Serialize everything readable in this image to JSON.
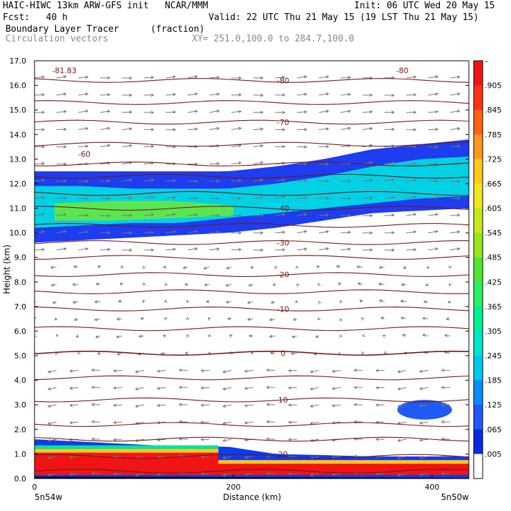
{
  "header": {
    "line1_left": "HAIC-HIWC 13km ARW-GFS init   NCAR/MMM",
    "line1_right": "Init: 06 UTC Wed 20 May 15",
    "line2_left": "Fcst:   40 h",
    "line2_right": "Valid: 22 UTC Thu 21 May 15 (19 LST Thu 21 May 15)",
    "line3_field": "Boundary Layer Tracer",
    "line3_units": "(fraction)",
    "line4_field": "Circulation vectors",
    "line4_xy": "XY= 251.0,100.0 to 284.7,100.0"
  },
  "chart_data": {
    "type": "heatmap",
    "xlabel": "Distance (km)",
    "ylabel": "Height (km)",
    "xlim": [
      0,
      437
    ],
    "ylim": [
      0,
      17
    ],
    "x_ticks": [
      "0",
      "200",
      "400"
    ],
    "x_end_labels": [
      "5n54w",
      "5n50w"
    ],
    "y_ticks": [
      "0.0",
      "1.0",
      "2.0",
      "3.0",
      "4.0",
      "5.0",
      "6.0",
      "7.0",
      "8.0",
      "9.0",
      "10.0",
      "11.0",
      "12.0",
      "13.0",
      "14.0",
      "15.0",
      "16.0",
      "17.0"
    ],
    "colorbar": {
      "labels": [
        ".005",
        ".065",
        ".125",
        ".185",
        ".245",
        ".305",
        ".365",
        ".425",
        ".485",
        ".545",
        ".605",
        ".665",
        ".725",
        ".785",
        ".845",
        ".905",
        "–"
      ],
      "colors": [
        "#ffffff",
        "#0a28e6",
        "#1e5af5",
        "#0a8cff",
        "#00c8f0",
        "#00e6c8",
        "#00f096",
        "#28f064",
        "#50e632",
        "#96e61e",
        "#c8e61e",
        "#f0e61e",
        "#ffc81e",
        "#ff961e",
        "#ff6414",
        "#ff3214",
        "#f01414"
      ]
    },
    "isotherm_labels": [
      {
        "text": "-81.83",
        "x": 30,
        "y": 16.6
      },
      {
        "text": "-80",
        "x": 370,
        "y": 16.6
      },
      {
        "text": "-80",
        "x": 250,
        "y": 16.2
      },
      {
        "text": "-70",
        "x": 250,
        "y": 14.5
      },
      {
        "text": "-60",
        "x": 50,
        "y": 13.2
      },
      {
        "text": "-40",
        "x": 250,
        "y": 11.0
      },
      {
        "text": "-30",
        "x": 250,
        "y": 9.6
      },
      {
        "text": "-20",
        "x": 250,
        "y": 8.3
      },
      {
        "text": "-10",
        "x": 250,
        "y": 6.9
      },
      {
        "text": "0",
        "x": 250,
        "y": 5.1
      },
      {
        "text": "10",
        "x": 250,
        "y": 3.2
      },
      {
        "text": "20",
        "x": 250,
        "y": 1.0
      }
    ],
    "isotherm_heights": [
      0.3,
      0.9,
      1.6,
      2.2,
      3.2,
      4.1,
      5.1,
      6.1,
      6.9,
      7.6,
      8.3,
      9.0,
      9.6,
      10.3,
      11.0,
      11.6,
      12.3,
      12.8,
      13.6,
      14.5,
      15.3,
      16.2
    ],
    "tracer_regions": [
      {
        "name": "upper-layer",
        "level": 0.065,
        "x_range": [
          0,
          437
        ],
        "bottom": [
          9.6,
          9.7,
          9.8,
          9.9,
          10.0,
          10.2,
          10.5,
          10.8,
          10.9,
          11.0
        ],
        "top": [
          12.5,
          12.5,
          12.5,
          12.5,
          12.5,
          12.7,
          13.0,
          13.4,
          13.6,
          13.8
        ]
      },
      {
        "name": "upper-core",
        "level": 0.305,
        "x_range": [
          0,
          437
        ],
        "bottom": [
          10.2,
          10.3,
          10.4,
          10.4,
          10.6,
          10.8,
          11.0,
          11.2,
          11.4,
          11.5
        ],
        "top": [
          11.9,
          11.9,
          11.8,
          11.8,
          11.8,
          12.0,
          12.3,
          12.7,
          13.0,
          13.1
        ]
      },
      {
        "name": "upper-max",
        "level": 0.365,
        "x_range": [
          20,
          200
        ],
        "bottom": [
          10.5,
          10.5,
          10.6,
          10.7
        ],
        "top": [
          11.2,
          11.3,
          11.3,
          11.1
        ]
      },
      {
        "name": "boundary-layer-high",
        "level": 0.905,
        "x_range": [
          0,
          185
        ],
        "bottom": [
          0.15
        ],
        "top": [
          1.2
        ]
      },
      {
        "name": "boundary-layer-low",
        "level": 0.905,
        "x_range": [
          185,
          437
        ],
        "bottom": [
          0.15
        ],
        "top": [
          0.75
        ]
      },
      {
        "name": "bl-edge",
        "level": 0.065,
        "x_range": [
          0,
          437
        ],
        "bottom": [
          0.0
        ],
        "top": [
          1.6,
          1.5,
          1.4,
          1.3,
          1.3,
          1.0,
          0.95,
          0.9,
          0.9,
          0.9
        ]
      },
      {
        "name": "blob-east",
        "level": 0.065,
        "x_range": [
          365,
          420
        ],
        "bottom": [
          2.4
        ],
        "top": [
          3.2
        ]
      }
    ],
    "vectors": "circulation vectors (u,w) plotted on regular grid, predominantly easterly-to-westerly aloft and westward near surface"
  }
}
